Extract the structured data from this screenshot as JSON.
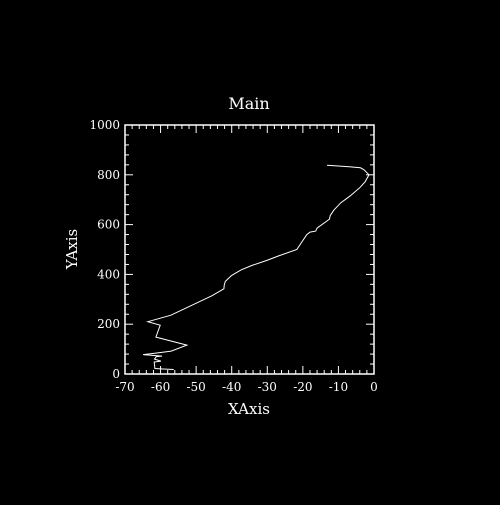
{
  "colors": {
    "background": "#000000",
    "foreground": "#ffffff"
  },
  "chart_data": {
    "type": "line",
    "title": "Main",
    "xlabel": "XAxis",
    "ylabel": "YAxis",
    "xlim": [
      -70,
      0
    ],
    "ylim": [
      0,
      1000
    ],
    "grid": false,
    "legend": "none",
    "x_ticks": [
      -70,
      -60,
      -50,
      -40,
      -30,
      -20,
      -10,
      0
    ],
    "y_ticks": [
      0,
      200,
      400,
      600,
      800,
      1000
    ],
    "x_minor_step": 2,
    "y_minor_step": 40,
    "series": [
      {
        "x": [
          -13.2,
          -7.0,
          -3.8,
          -2.8,
          -1.4,
          -2.5,
          -4.0,
          -6.8,
          -9.3,
          -11.3,
          -12.3,
          -12.5,
          -16.0,
          -16.4,
          -18.0,
          -18.9,
          -21.7,
          -26.9,
          -30.2,
          -34.3,
          -37.4,
          -40.0,
          -41.8,
          -42.1,
          -42.2,
          -45.6,
          -57.1,
          -63.6,
          -60.1,
          -61.3,
          -52.6,
          -57.0,
          -61.3,
          -64.9,
          -59.6,
          -61.2,
          -61.7,
          -59.9,
          -61.8,
          -61.6,
          -59.3,
          -56.3
        ],
        "y": [
          838,
          832,
          828,
          820,
          800,
          772,
          748,
          714,
          688,
          658,
          636,
          622,
          586,
          574,
          570,
          560,
          500,
          474,
          456,
          436,
          418,
          396,
          372,
          356,
          342,
          314,
          236,
          210,
          196,
          148,
          116,
          92,
          84,
          78,
          72,
          70,
          60,
          52,
          48,
          22,
          20,
          18
        ]
      }
    ]
  }
}
